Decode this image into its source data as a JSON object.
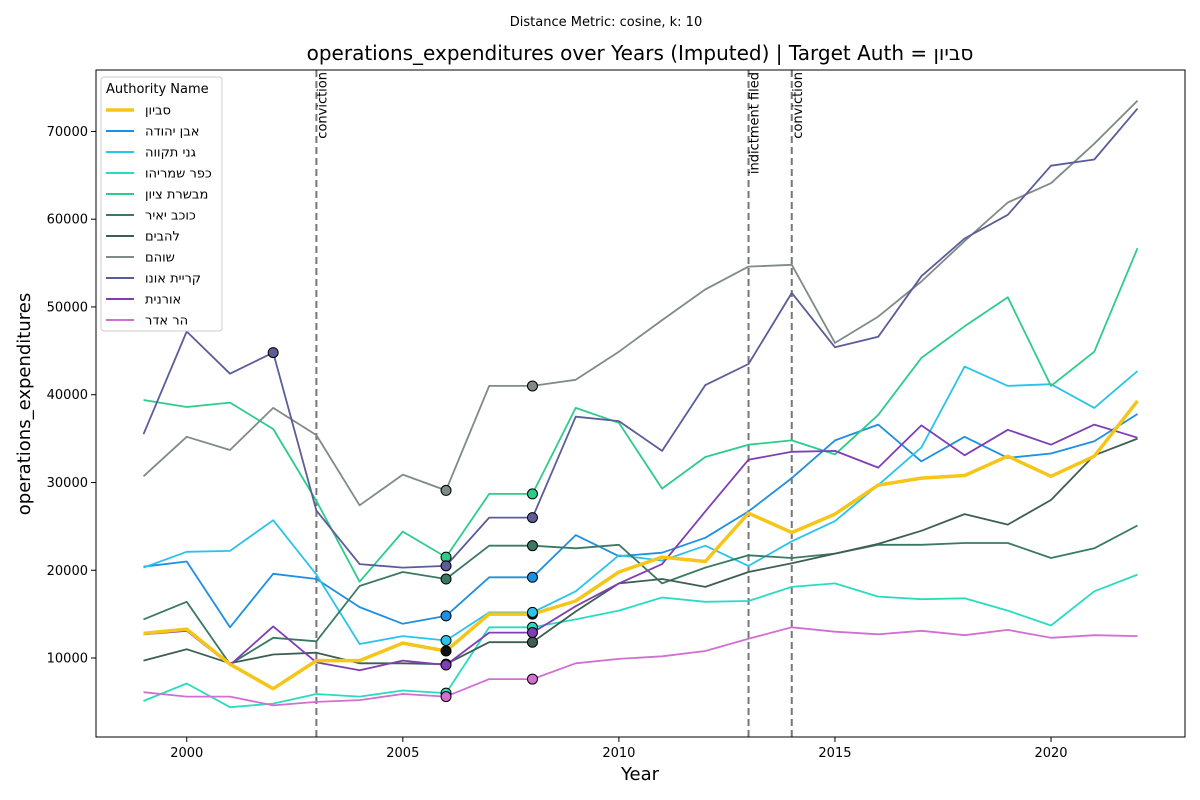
{
  "chart_data": {
    "type": "line",
    "suptitle": "Distance Metric: cosine, k: 10",
    "title": "operations_expenditures over Years (Imputed) | Target Auth = סביון",
    "xlabel": "Year",
    "ylabel": "operations_expenditures",
    "xlim": [
      1997.9,
      2023.1
    ],
    "ylim": [
      1000,
      77000
    ],
    "xticks": [
      2000,
      2005,
      2010,
      2015,
      2020
    ],
    "yticks": [
      10000,
      20000,
      30000,
      40000,
      50000,
      60000,
      70000
    ],
    "x": [
      1999,
      2000,
      2001,
      2002,
      2003,
      2004,
      2005,
      2006,
      2007,
      2008,
      2009,
      2010,
      2011,
      2012,
      2013,
      2014,
      2015,
      2016,
      2017,
      2018,
      2019,
      2020,
      2021,
      2022
    ],
    "grid": false,
    "legend": {
      "title": "Authority Name",
      "position": "top-left"
    },
    "events": [
      {
        "year": 2003,
        "label": "conviction"
      },
      {
        "year": 2013,
        "label": "indictment filed"
      },
      {
        "year": 2014,
        "label": "conviction"
      }
    ],
    "series": [
      {
        "name": "סביון",
        "color": "#f5c518",
        "target": true,
        "imputed_years": [
          2006,
          2008
        ],
        "values": [
          12800,
          13300,
          9300,
          6500,
          9700,
          9700,
          11700,
          10800,
          15000,
          15000,
          16500,
          19800,
          21500,
          21000,
          26500,
          24300,
          26400,
          29700,
          30500,
          30800,
          33000,
          30700,
          33000,
          39300
        ]
      },
      {
        "name": "אבן יהודה",
        "color": "#1f8fe0",
        "imputed_years": [
          2006,
          2008
        ],
        "values": [
          20400,
          21000,
          13500,
          19600,
          19000,
          15800,
          13900,
          14800,
          19200,
          19200,
          24000,
          21600,
          22000,
          23700,
          26700,
          30500,
          34800,
          36600,
          32400,
          35200,
          32800,
          33300,
          34700,
          37800
        ]
      },
      {
        "name": "גני תקווה",
        "color": "#29c3ec",
        "imputed_years": [
          2006,
          2008
        ],
        "values": [
          20300,
          22100,
          22200,
          25700,
          19500,
          11600,
          12500,
          12000,
          15200,
          15200,
          17600,
          21700,
          21100,
          22800,
          20500,
          23300,
          25600,
          29700,
          34000,
          43200,
          41000,
          41200,
          38500,
          42700
        ]
      },
      {
        "name": "כפר שמריהו",
        "color": "#28dcc0",
        "imputed_years": [
          2006,
          2008
        ],
        "values": [
          5100,
          7100,
          4400,
          4800,
          5900,
          5600,
          6300,
          6000,
          13500,
          13500,
          14400,
          15400,
          16900,
          16400,
          16500,
          18100,
          18500,
          17000,
          16700,
          16800,
          15400,
          13700,
          17600,
          19500
        ]
      },
      {
        "name": "מבשרת ציון",
        "color": "#2dcc8a",
        "imputed_years": [
          2006,
          2008
        ],
        "values": [
          39400,
          38600,
          39100,
          36100,
          27900,
          18700,
          24400,
          21500,
          28700,
          28700,
          38500,
          36800,
          29300,
          32900,
          34300,
          34800,
          33200,
          37700,
          44200,
          47800,
          51100,
          41000,
          44900,
          56700
        ]
      },
      {
        "name": "כוכב יאיר",
        "color": "#3a7a62",
        "imputed_years": [
          2006,
          2008
        ],
        "values": [
          14400,
          16400,
          9300,
          12300,
          11900,
          18200,
          19800,
          19000,
          22800,
          22800,
          22500,
          22900,
          18500,
          20300,
          21700,
          21400,
          21900,
          22900,
          22900,
          23100,
          23100,
          21400,
          22500,
          25100
        ]
      },
      {
        "name": "להבים",
        "color": "#3f5e52",
        "imputed_years": [
          2006,
          2008
        ],
        "values": [
          9700,
          11000,
          9400,
          10400,
          10600,
          9400,
          9400,
          9300,
          11800,
          11800,
          15300,
          18500,
          19000,
          18100,
          19800,
          20800,
          21900,
          23000,
          24500,
          26400,
          25200,
          28000,
          33100,
          35000
        ]
      },
      {
        "name": "שוהם",
        "color": "#7f8b85",
        "imputed_years": [
          2006,
          2008
        ],
        "values": [
          30700,
          35200,
          33700,
          38500,
          35400,
          27400,
          30900,
          29100,
          41000,
          41000,
          41700,
          44900,
          48500,
          52000,
          54600,
          54800,
          45900,
          48900,
          52900,
          57500,
          61900,
          64100,
          68600,
          73500
        ]
      },
      {
        "name": "קריית אונו",
        "color": "#5c5c99",
        "imputed_years": [
          2002,
          2006,
          2008
        ],
        "values": [
          35500,
          47200,
          42400,
          44800,
          26800,
          20700,
          20300,
          20500,
          26000,
          26000,
          37500,
          37000,
          33600,
          41100,
          43500,
          51600,
          45400,
          46600,
          53500,
          57800,
          60500,
          66100,
          66800,
          72600
        ]
      },
      {
        "name": "אורנית",
        "color": "#7e3fb4",
        "imputed_years": [
          2006,
          2008
        ],
        "values": [
          12700,
          13100,
          9200,
          13600,
          9500,
          8600,
          9700,
          9200,
          12900,
          12900,
          15900,
          18500,
          20700,
          26700,
          32600,
          33500,
          33600,
          31700,
          36500,
          33100,
          36000,
          34300,
          36600,
          35100
        ]
      },
      {
        "name": "הר אדר",
        "color": "#d26fd2",
        "imputed_years": [
          2006,
          2008
        ],
        "values": [
          6100,
          5600,
          5600,
          4600,
          5000,
          5200,
          5900,
          5600,
          7600,
          7600,
          9400,
          9900,
          10200,
          10800,
          12200,
          13500,
          13000,
          12700,
          13100,
          12600,
          13200,
          12300,
          12600,
          12500
        ]
      }
    ]
  }
}
